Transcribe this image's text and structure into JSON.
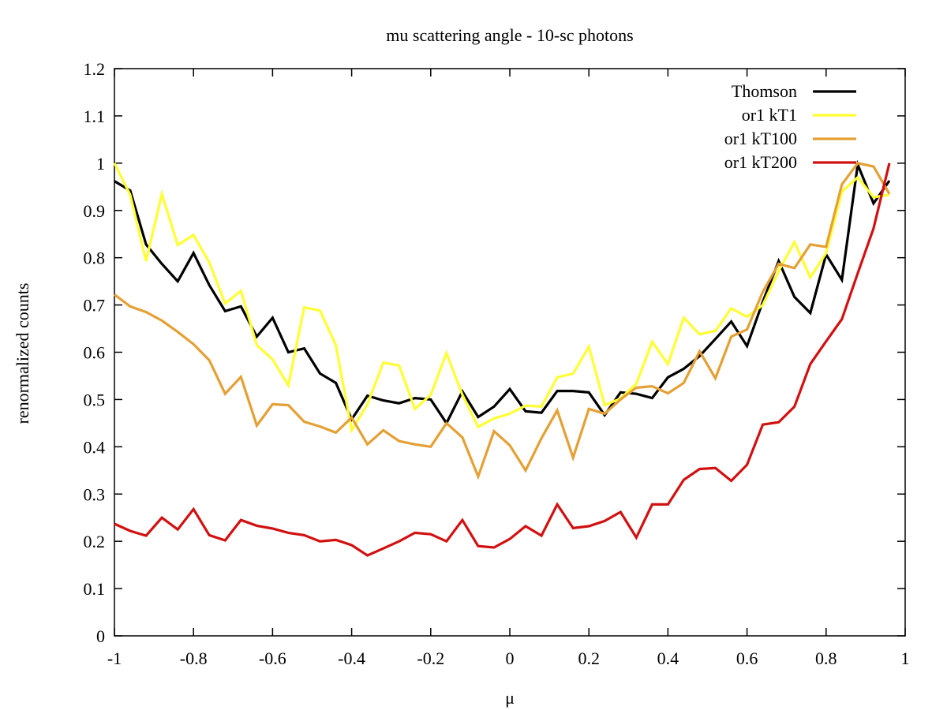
{
  "chart_data": {
    "type": "line",
    "title": "mu scattering angle - 10-sc photons",
    "xlabel": "μ",
    "ylabel": "renormalized counts",
    "xlim": [
      -1,
      1
    ],
    "ylim": [
      0,
      1.2
    ],
    "xticks": [
      -1,
      -0.8,
      -0.6,
      -0.4,
      -0.2,
      0,
      0.2,
      0.4,
      0.6,
      0.8,
      1
    ],
    "xtick_labels": [
      "-1",
      "-0.8",
      "-0.6",
      "-0.4",
      "-0.2",
      "0",
      "0.2",
      "0.4",
      "0.6",
      "0.8",
      "1"
    ],
    "yticks": [
      0,
      0.1,
      0.2,
      0.3,
      0.4,
      0.5,
      0.6,
      0.7,
      0.8,
      0.9,
      1,
      1.1,
      1.2
    ],
    "ytick_labels": [
      "0",
      "0.1",
      "0.2",
      "0.3",
      "0.4",
      "0.5",
      "0.6",
      "0.7",
      "0.8",
      "0.9",
      "1",
      "1.1",
      "1.2"
    ],
    "grid": false,
    "legend_position": "top-right",
    "x": [
      -1,
      -0.96,
      -0.92,
      -0.88,
      -0.84,
      -0.8,
      -0.76,
      -0.72,
      -0.68,
      -0.64,
      -0.6,
      -0.56,
      -0.52,
      -0.48,
      -0.44,
      -0.4,
      -0.36,
      -0.32,
      -0.28,
      -0.24,
      -0.2,
      -0.16,
      -0.12,
      -0.08,
      -0.04,
      0,
      0.04,
      0.08,
      0.12,
      0.16,
      0.2,
      0.24,
      0.28,
      0.32,
      0.36,
      0.4,
      0.44,
      0.48,
      0.52,
      0.56,
      0.6,
      0.64,
      0.68,
      0.72,
      0.76,
      0.8,
      0.84,
      0.88,
      0.92,
      0.96
    ],
    "series": [
      {
        "name": "Thomson",
        "color": "#000000",
        "values": [
          0.962,
          0.942,
          0.828,
          0.787,
          0.75,
          0.81,
          0.742,
          0.687,
          0.697,
          0.633,
          0.673,
          0.6,
          0.608,
          0.555,
          0.535,
          0.458,
          0.508,
          0.498,
          0.492,
          0.503,
          0.5,
          0.45,
          0.517,
          0.463,
          0.485,
          0.522,
          0.475,
          0.472,
          0.518,
          0.518,
          0.515,
          0.467,
          0.515,
          0.512,
          0.503,
          0.547,
          0.565,
          0.592,
          0.628,
          0.665,
          0.613,
          0.707,
          0.793,
          0.717,
          0.683,
          0.807,
          0.753,
          0.997,
          0.915,
          0.963
        ]
      },
      {
        "name": "or1 kT1",
        "color": "#ffff33",
        "values": [
          1.0,
          0.933,
          0.793,
          0.935,
          0.827,
          0.848,
          0.79,
          0.703,
          0.73,
          0.615,
          0.585,
          0.53,
          0.695,
          0.688,
          0.615,
          0.435,
          0.49,
          0.578,
          0.572,
          0.48,
          0.51,
          0.598,
          0.51,
          0.442,
          0.46,
          0.47,
          0.487,
          0.485,
          0.547,
          0.555,
          0.612,
          0.488,
          0.502,
          0.533,
          0.622,
          0.575,
          0.673,
          0.638,
          0.645,
          0.693,
          0.675,
          0.7,
          0.772,
          0.833,
          0.758,
          0.81,
          0.94,
          0.97,
          0.928,
          0.933
        ]
      },
      {
        "name": "or1 kT100",
        "color": "#e5a034",
        "values": [
          0.722,
          0.697,
          0.685,
          0.667,
          0.643,
          0.617,
          0.583,
          0.512,
          0.548,
          0.445,
          0.49,
          0.488,
          0.453,
          0.443,
          0.43,
          0.462,
          0.405,
          0.435,
          0.412,
          0.405,
          0.4,
          0.45,
          0.42,
          0.337,
          0.433,
          0.403,
          0.35,
          0.418,
          0.477,
          0.377,
          0.48,
          0.47,
          0.5,
          0.525,
          0.528,
          0.513,
          0.535,
          0.602,
          0.545,
          0.633,
          0.648,
          0.728,
          0.787,
          0.778,
          0.828,
          0.823,
          0.955,
          1.0,
          0.993,
          0.935
        ]
      },
      {
        "name": "or1 kT200",
        "color": "#d21010",
        "values": [
          0.237,
          0.222,
          0.212,
          0.25,
          0.225,
          0.268,
          0.213,
          0.202,
          0.245,
          0.233,
          0.227,
          0.218,
          0.213,
          0.2,
          0.203,
          0.192,
          0.17,
          0.185,
          0.2,
          0.218,
          0.215,
          0.2,
          0.245,
          0.19,
          0.187,
          0.205,
          0.232,
          0.212,
          0.278,
          0.228,
          0.232,
          0.243,
          0.262,
          0.208,
          0.278,
          0.278,
          0.33,
          0.353,
          0.355,
          0.328,
          0.362,
          0.447,
          0.452,
          0.485,
          0.575,
          0.623,
          0.67,
          0.767,
          0.862,
          1.0
        ]
      }
    ]
  }
}
